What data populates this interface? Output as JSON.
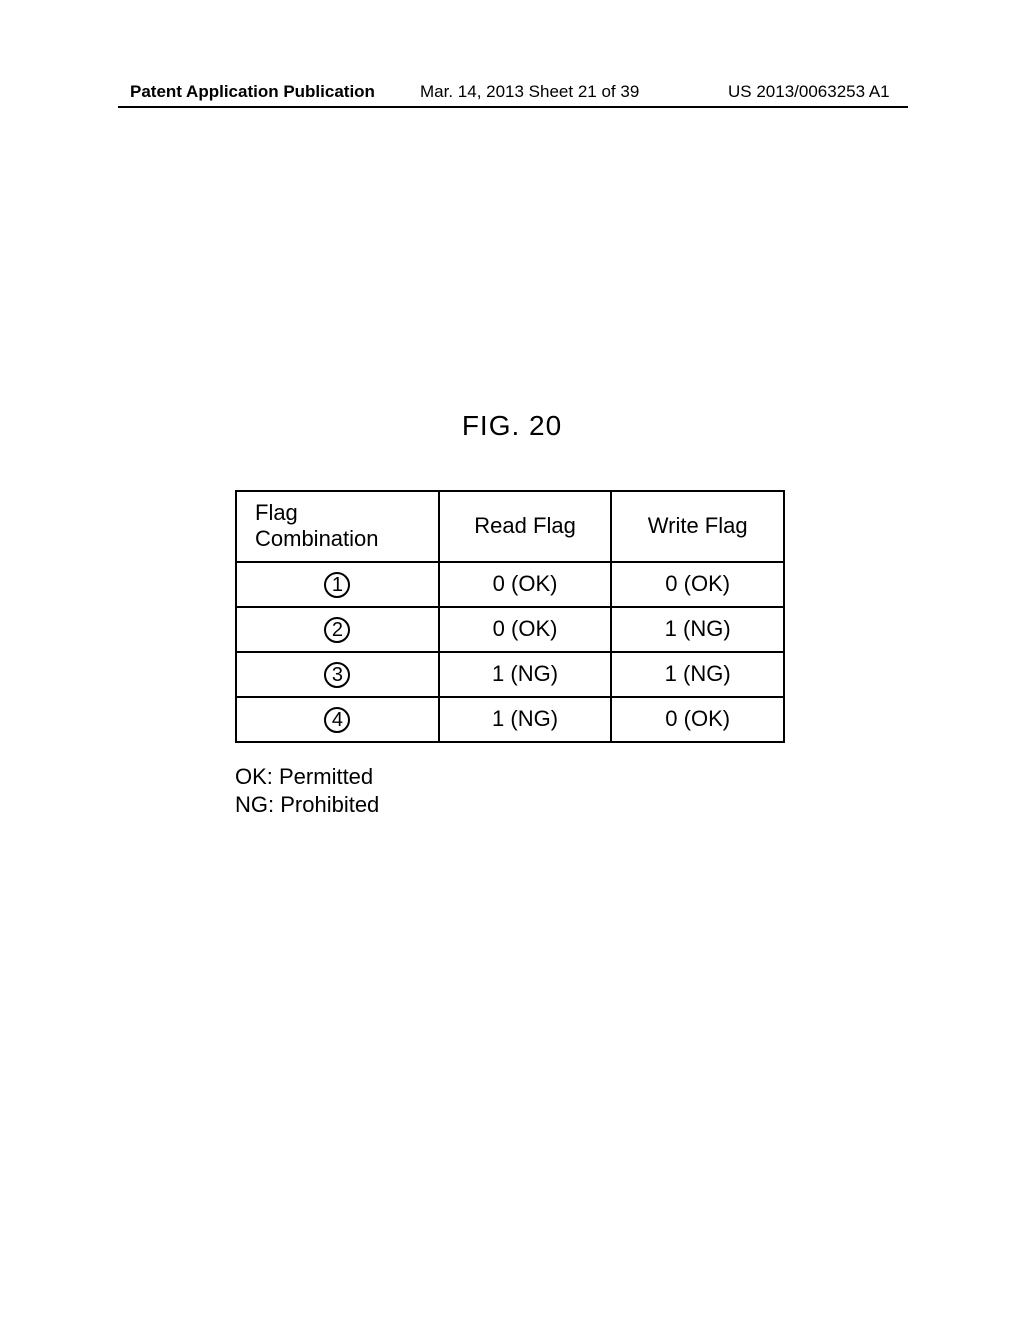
{
  "header": {
    "left": "Patent Application Publication",
    "center": "Mar. 14, 2013  Sheet 21 of 39",
    "right": "US 2013/0063253 A1"
  },
  "figure": {
    "title": "FIG. 20"
  },
  "table": {
    "columns": [
      "Flag\nCombination",
      "Read Flag",
      "Write Flag"
    ],
    "rows": [
      {
        "num": "1",
        "read": "0 (OK)",
        "write": "0 (OK)"
      },
      {
        "num": "2",
        "read": "0 (OK)",
        "write": "1 (NG)"
      },
      {
        "num": "3",
        "read": "1 (NG)",
        "write": "1 (NG)"
      },
      {
        "num": "4",
        "read": "1 (NG)",
        "write": "0 (OK)"
      }
    ],
    "column_widths": [
      "37%",
      "31.5%",
      "31.5%"
    ],
    "border_color": "#000000",
    "border_width": 2,
    "header_fontsize": 22,
    "cell_fontsize": 22,
    "text_color": "#000000",
    "background_color": "#ffffff"
  },
  "legend": {
    "line1": "OK: Permitted",
    "line2": "NG: Prohibited"
  }
}
